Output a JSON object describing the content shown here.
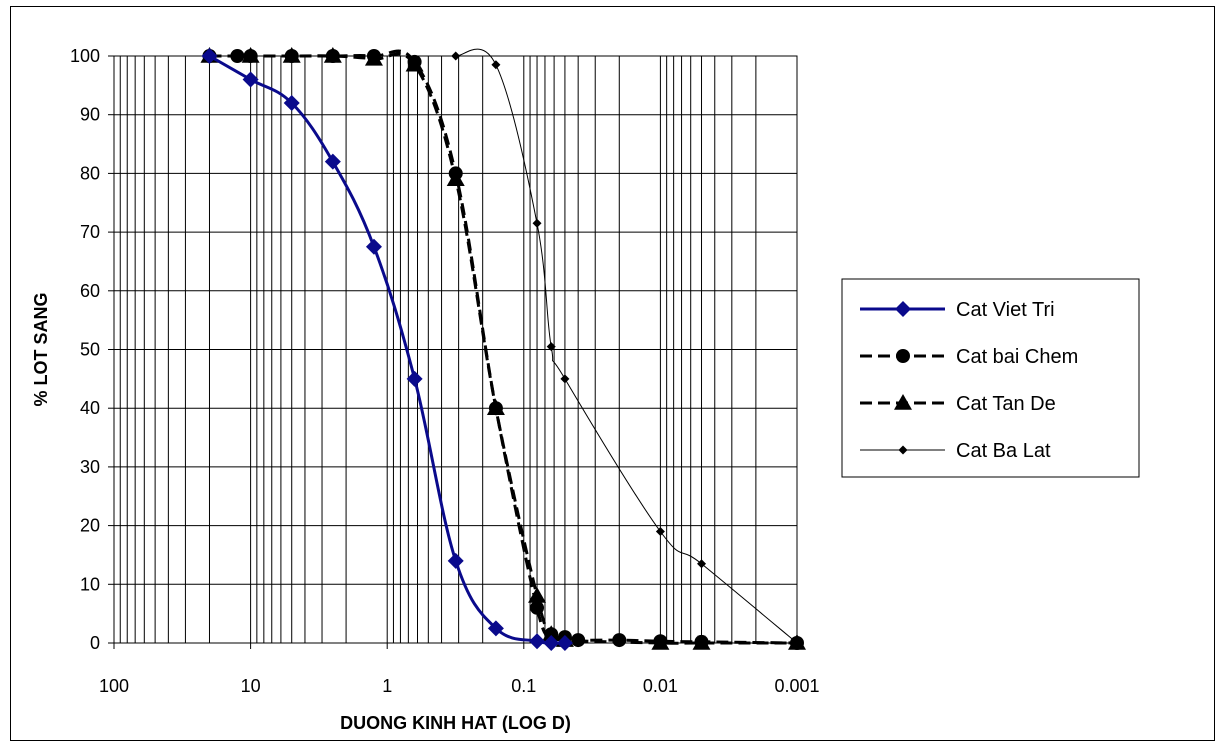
{
  "chart_data": {
    "type": "line",
    "title": "",
    "xlabel": "DUONG KINH HAT (LOG D)",
    "ylabel": "% LOT SANG",
    "x_scale": "log",
    "x_reversed": true,
    "xlim": [
      100,
      0.001
    ],
    "ylim": [
      0,
      100
    ],
    "grid": true,
    "legend_position": "right",
    "x_tick_labels": [
      "100",
      "10",
      "1",
      "0.1",
      "0.01",
      "0.001"
    ],
    "y_tick_labels": [
      "0",
      "10",
      "20",
      "30",
      "40",
      "50",
      "60",
      "70",
      "80",
      "90",
      "100"
    ],
    "series": [
      {
        "name": "Cat Viet Tri",
        "color": "#0a0a8c",
        "line_style": "solid",
        "marker": "diamond",
        "points": [
          {
            "x": 20,
            "y": 100
          },
          {
            "x": 10,
            "y": 96
          },
          {
            "x": 5,
            "y": 92
          },
          {
            "x": 2.5,
            "y": 82
          },
          {
            "x": 1.25,
            "y": 67.5
          },
          {
            "x": 0.63,
            "y": 45
          },
          {
            "x": 0.315,
            "y": 14
          },
          {
            "x": 0.16,
            "y": 2.5
          },
          {
            "x": 0.08,
            "y": 0.3
          },
          {
            "x": 0.063,
            "y": 0
          },
          {
            "x": 0.05,
            "y": 0
          }
        ]
      },
      {
        "name": "Cat bai Chem",
        "color": "#000000",
        "line_style": "dashed",
        "marker": "circle",
        "points": [
          {
            "x": 20,
            "y": 100
          },
          {
            "x": 12.5,
            "y": 100
          },
          {
            "x": 10,
            "y": 100
          },
          {
            "x": 5,
            "y": 100
          },
          {
            "x": 2.5,
            "y": 100
          },
          {
            "x": 1.25,
            "y": 100
          },
          {
            "x": 0.63,
            "y": 99
          },
          {
            "x": 0.315,
            "y": 80
          },
          {
            "x": 0.16,
            "y": 40
          },
          {
            "x": 0.08,
            "y": 6
          },
          {
            "x": 0.063,
            "y": 1.5
          },
          {
            "x": 0.05,
            "y": 1
          },
          {
            "x": 0.04,
            "y": 0.5
          },
          {
            "x": 0.02,
            "y": 0.5
          },
          {
            "x": 0.01,
            "y": 0.3
          },
          {
            "x": 0.005,
            "y": 0.2
          },
          {
            "x": 0.001,
            "y": 0
          }
        ]
      },
      {
        "name": "Cat Tan De",
        "color": "#000000",
        "line_style": "dashed",
        "marker": "triangle",
        "points": [
          {
            "x": 20,
            "y": 100
          },
          {
            "x": 10,
            "y": 100
          },
          {
            "x": 5,
            "y": 100
          },
          {
            "x": 2.5,
            "y": 100
          },
          {
            "x": 1.25,
            "y": 99.5
          },
          {
            "x": 0.63,
            "y": 98.5
          },
          {
            "x": 0.315,
            "y": 79
          },
          {
            "x": 0.16,
            "y": 40
          },
          {
            "x": 0.08,
            "y": 8
          },
          {
            "x": 0.063,
            "y": 1.5
          },
          {
            "x": 0.05,
            "y": 0.5
          },
          {
            "x": 0.01,
            "y": 0
          },
          {
            "x": 0.005,
            "y": 0
          },
          {
            "x": 0.001,
            "y": 0
          }
        ]
      },
      {
        "name": "Cat Ba Lat",
        "color": "#000000",
        "line_style": "thin-solid",
        "marker": "small-diamond",
        "points": [
          {
            "x": 0.315,
            "y": 100
          },
          {
            "x": 0.16,
            "y": 98.5
          },
          {
            "x": 0.08,
            "y": 71.5
          },
          {
            "x": 0.063,
            "y": 50.5
          },
          {
            "x": 0.05,
            "y": 45
          },
          {
            "x": 0.01,
            "y": 19
          },
          {
            "x": 0.005,
            "y": 13.5
          },
          {
            "x": 0.001,
            "y": 0
          }
        ]
      }
    ]
  }
}
